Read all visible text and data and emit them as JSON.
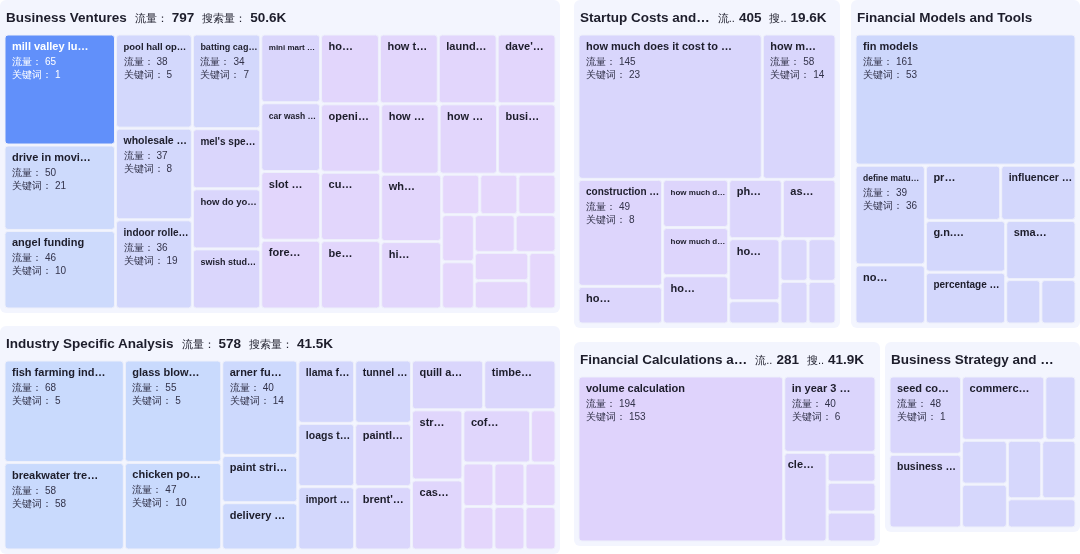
{
  "chart_data": [
    {
      "type": "other",
      "data_labels": true,
      "title": "Business Ventures",
      "annotations": [
        "流量：",
        "797",
        "搜索量：",
        "50.6K"
      ],
      "categories": [
        "mill valley lu…",
        "drive in movi…",
        "angel funding",
        "pool hall op…",
        "wholesale …",
        "indoor rolle…",
        "batting cag…",
        "mel's spe…",
        "how do yo…",
        "swish stud…",
        "mini mart …",
        "car wash …",
        "slot …",
        "fore…",
        "ho…",
        "how t…",
        "laund…",
        "dave'…",
        "openi…",
        "cu…",
        "be…",
        "how …",
        "how …",
        "busi…",
        "wh…",
        "hi…",
        null,
        null,
        null,
        null,
        null,
        null,
        null,
        null,
        null,
        null
      ],
      "series": [
        {
          "name": "流量：",
          "values": [
            65,
            50,
            46,
            38,
            37,
            36,
            34,
            null,
            null,
            null,
            null,
            null,
            null,
            null,
            null,
            null,
            null,
            null,
            null,
            null,
            null,
            null,
            null,
            null,
            null,
            null,
            null,
            null,
            null,
            null,
            null,
            null,
            null,
            null,
            null,
            null
          ],
          "colors": [
            "#6190fa",
            "#cddafc",
            "#cddafc",
            "#d3d8fc",
            "#d3d8fc",
            "#d3d8fc",
            "#d3d8fc",
            "#dad6fc",
            "#dad6fc",
            "#dad6fc",
            "#dad6fc",
            "#dad6fc",
            "#e2d6fc",
            "#e2d6fc",
            "#e2d6fc",
            "#e2d6fc",
            "#e2d6fc",
            "#e2d6fc",
            "#e2d6fc",
            "#e2d6fc",
            "#e2d6fc",
            "#e2d6fc",
            "#e2d6fc",
            "#e2d6fc",
            "#e2d6fc",
            "#e2d6fc",
            "#e5d7fc",
            "#e5d7fc",
            "#e5d7fc",
            "#e5d7fc",
            "#e5d7fc",
            "#e5d7fc",
            "#e5d7fc",
            "#e5d7fc",
            "#e5d7fc",
            "#e5d7fc"
          ]
        },
        {
          "name": "关键词：",
          "values": [
            1,
            21,
            10,
            5,
            8,
            19,
            7,
            null,
            null,
            null,
            null,
            null,
            null,
            null,
            null,
            null,
            null,
            null,
            null,
            null,
            null,
            null,
            null,
            null,
            null,
            null,
            null,
            null,
            null,
            null,
            null,
            null,
            null,
            null,
            null,
            null
          ]
        }
      ]
    },
    {
      "type": "other",
      "data_labels": true,
      "title": "Startup Costs and…",
      "annotations": [
        "流..",
        "405",
        "搜..",
        "19.6K"
      ],
      "categories": [
        "how much does it cost to …",
        "how m…",
        "construction …",
        "ho…",
        "how much d…",
        "how much d…",
        "ho…",
        "ph…",
        "as…",
        "ho…",
        null,
        null,
        null,
        null,
        null
      ],
      "series": [
        {
          "name": "流量：",
          "values": [
            145,
            58,
            49,
            null,
            null,
            null,
            null,
            null,
            null,
            null,
            null,
            null,
            null,
            null,
            null
          ],
          "colors": [
            "#d9d6fc",
            "#d9d6fc",
            "#ddd5fc",
            "#dcd6fc",
            "#ddd5fc",
            "#ddd5fc",
            "#dcd6fc",
            "#dcd6fc",
            "#dcd6fc",
            "#dcd6fc",
            "#dad7fc",
            "#dad7fc",
            "#dad7fc",
            "#dad7fc",
            "#dad7fc"
          ]
        },
        {
          "name": "关键词：",
          "values": [
            23,
            14,
            8,
            null,
            null,
            null,
            null,
            null,
            null,
            null,
            null,
            null,
            null,
            null,
            null
          ]
        }
      ]
    },
    {
      "type": "other",
      "data_labels": true,
      "title": "Financial Models and Tools",
      "categories": [
        "fin models",
        "define matu…",
        "no…",
        "pr…",
        "influencer …",
        "g.n.…",
        "percentage …",
        "sma…",
        null,
        null
      ],
      "series": [
        {
          "name": "流量：",
          "values": [
            161,
            39,
            null,
            null,
            null,
            null,
            null,
            null,
            null,
            null
          ],
          "colors": [
            "#cdd7fc",
            "#d2d7fc",
            "#d3d7fc",
            "#d3d7fc",
            "#d3d7fc",
            "#d3d7fc",
            "#d3d7fc",
            "#d3d7fc",
            "#d3d7fc",
            "#d3d7fc"
          ]
        },
        {
          "name": "关键词：",
          "values": [
            53,
            36,
            null,
            null,
            null,
            null,
            null,
            null,
            null,
            null
          ]
        }
      ]
    },
    {
      "type": "other",
      "data_labels": true,
      "title": "Industry Specific Analysis",
      "annotations": [
        "流量：",
        "578",
        "搜索量：",
        "41.5K"
      ],
      "categories": [
        "fish farming ind…",
        "breakwater tre…",
        "glass blow…",
        "chicken po…",
        "arner fu…",
        "paint stri…",
        "delivery …",
        "llama f…",
        "loags t…",
        "import …",
        "tunnel …",
        "paintl…",
        "brent'…",
        "quill a…",
        "timbe…",
        "str…",
        "cas…",
        "cof…",
        null,
        null,
        null,
        null,
        null,
        null,
        null
      ],
      "series": [
        {
          "name": "流量：",
          "values": [
            68,
            58,
            55,
            47,
            40,
            null,
            null,
            null,
            null,
            null,
            null,
            null,
            null,
            null,
            null,
            null,
            null,
            null,
            null,
            null,
            null,
            null,
            null,
            null,
            null
          ],
          "colors": [
            "#c9dafd",
            "#c9dafd",
            "#c9dafd",
            "#c9dafd",
            "#cdd9fd",
            "#cdd9fd",
            "#cdd9fd",
            "#d3d7fc",
            "#d3d7fc",
            "#d3d7fc",
            "#d3d7fc",
            "#dad6fc",
            "#dad6fc",
            "#dad6fc",
            "#dad6fc",
            "#e0d6fc",
            "#e0d6fc",
            "#e0d6fc",
            "#e4d6fc",
            "#e4d6fc",
            "#e4d6fc",
            "#e4d6fc",
            "#e4d6fc",
            "#e4d6fc",
            "#e4d6fc"
          ]
        },
        {
          "name": "关键词：",
          "values": [
            5,
            58,
            5,
            10,
            14,
            null,
            null,
            null,
            null,
            null,
            null,
            null,
            null,
            null,
            null,
            null,
            null,
            null,
            null,
            null,
            null,
            null,
            null,
            null,
            null
          ]
        }
      ]
    },
    {
      "type": "other",
      "data_labels": true,
      "title": "Financial Calculations a…",
      "annotations": [
        "流..",
        "281",
        "搜..",
        "41.9K"
      ],
      "categories": [
        "volume calculation",
        "in year 3 …",
        "cle…",
        null,
        null,
        null
      ],
      "series": [
        {
          "name": "流量：",
          "values": [
            194,
            40,
            null,
            null,
            null,
            null
          ],
          "colors": [
            "#dfd3fc",
            "#dbd5fc",
            "#dbd5fc",
            "#dbd5fc",
            "#dbd5fc",
            "#dbd5fc"
          ]
        },
        {
          "name": "关键词：",
          "values": [
            153,
            6,
            null,
            null,
            null,
            null
          ]
        }
      ]
    },
    {
      "type": "other",
      "data_labels": true,
      "title": "Business Strategy and …",
      "categories": [
        "seed co…",
        "business …",
        "commerc…",
        null,
        null,
        null,
        null,
        null,
        null
      ],
      "series": [
        {
          "name": "流量：",
          "values": [
            48,
            null,
            null,
            null,
            null,
            null,
            null,
            null,
            null
          ],
          "colors": [
            "#d9d6fc",
            "#d9d6fc",
            "#d9d6fc",
            "#d6d7fc",
            "#d6d7fc",
            "#d6d7fc",
            "#d6d7fc",
            "#d6d7fc",
            "#d6d7fc"
          ]
        },
        {
          "name": "关键词：",
          "values": [
            1,
            null,
            null,
            null,
            null,
            null,
            null,
            null,
            null
          ]
        }
      ]
    }
  ]
}
